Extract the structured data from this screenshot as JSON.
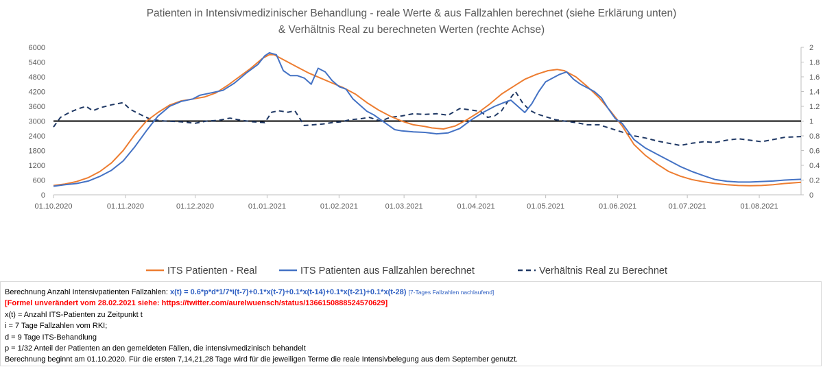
{
  "chart_data": {
    "type": "line",
    "title_line1": "Patienten in Intensivmedizinischer Behandlung - reale Werte & aus Fallzahlen berechnet (siehe Erklärung unten)",
    "title_line2": "& Verhältnis Real zu berechneten Werten (rechte Achse)",
    "y_left": {
      "min": 0,
      "max": 6000,
      "ticks": [
        "6000",
        "5400",
        "4800",
        "4200",
        "3600",
        "3000",
        "2400",
        "1800",
        "1200",
        "600",
        "0"
      ]
    },
    "y_right": {
      "min": 0,
      "max": 2,
      "ticks": [
        "2",
        "1.8",
        "1.6",
        "1.4",
        "1.2",
        "1",
        "0.8",
        "0.6",
        "0.4",
        "0.2",
        "0"
      ]
    },
    "x_range_days": [
      0,
      322
    ],
    "x_ticks": [
      {
        "day": 0,
        "label": "01.10.2020"
      },
      {
        "day": 31,
        "label": "01.11.2020"
      },
      {
        "day": 61,
        "label": "01.12.2020"
      },
      {
        "day": 92,
        "label": "01.01.2021"
      },
      {
        "day": 123,
        "label": "01.02.2021"
      },
      {
        "day": 151,
        "label": "01.03.2021"
      },
      {
        "day": 182,
        "label": "01.04.2021"
      },
      {
        "day": 212,
        "label": "01.05.2021"
      },
      {
        "day": 243,
        "label": "01.06.2021"
      },
      {
        "day": 273,
        "label": "01.07.2021"
      },
      {
        "day": 304,
        "label": "01.08.2021"
      }
    ],
    "reference_line_left": 3000,
    "series": [
      {
        "name": "ITS Patienten - Real",
        "color": "#ed7d31",
        "axis": "left",
        "style": "solid",
        "points": [
          [
            0,
            380
          ],
          [
            5,
            440
          ],
          [
            10,
            540
          ],
          [
            15,
            700
          ],
          [
            20,
            950
          ],
          [
            25,
            1300
          ],
          [
            30,
            1800
          ],
          [
            35,
            2450
          ],
          [
            40,
            3000
          ],
          [
            45,
            3350
          ],
          [
            50,
            3650
          ],
          [
            55,
            3820
          ],
          [
            60,
            3900
          ],
          [
            65,
            3980
          ],
          [
            70,
            4150
          ],
          [
            75,
            4450
          ],
          [
            80,
            4800
          ],
          [
            85,
            5150
          ],
          [
            90,
            5550
          ],
          [
            93,
            5700
          ],
          [
            95,
            5700
          ],
          [
            100,
            5450
          ],
          [
            105,
            5200
          ],
          [
            110,
            4950
          ],
          [
            115,
            4750
          ],
          [
            120,
            4550
          ],
          [
            125,
            4350
          ],
          [
            130,
            4100
          ],
          [
            135,
            3750
          ],
          [
            140,
            3450
          ],
          [
            145,
            3200
          ],
          [
            150,
            3000
          ],
          [
            155,
            2850
          ],
          [
            160,
            2780
          ],
          [
            163,
            2720
          ],
          [
            168,
            2680
          ],
          [
            173,
            2800
          ],
          [
            178,
            3050
          ],
          [
            183,
            3350
          ],
          [
            188,
            3700
          ],
          [
            193,
            4100
          ],
          [
            198,
            4400
          ],
          [
            203,
            4700
          ],
          [
            208,
            4900
          ],
          [
            213,
            5050
          ],
          [
            217,
            5100
          ],
          [
            220,
            5050
          ],
          [
            225,
            4800
          ],
          [
            230,
            4400
          ],
          [
            235,
            3950
          ],
          [
            240,
            3400
          ],
          [
            245,
            2800
          ],
          [
            250,
            2050
          ],
          [
            255,
            1600
          ],
          [
            260,
            1250
          ],
          [
            265,
            950
          ],
          [
            270,
            760
          ],
          [
            275,
            620
          ],
          [
            280,
            530
          ],
          [
            285,
            460
          ],
          [
            290,
            410
          ],
          [
            295,
            380
          ],
          [
            300,
            370
          ],
          [
            305,
            380
          ],
          [
            310,
            410
          ],
          [
            315,
            460
          ],
          [
            322,
            510
          ]
        ]
      },
      {
        "name": "ITS Patienten aus Fallzahlen berechnet",
        "color": "#4472c4",
        "axis": "left",
        "style": "solid",
        "points": [
          [
            0,
            350
          ],
          [
            5,
            410
          ],
          [
            10,
            460
          ],
          [
            15,
            560
          ],
          [
            20,
            750
          ],
          [
            25,
            1000
          ],
          [
            30,
            1380
          ],
          [
            35,
            1950
          ],
          [
            40,
            2600
          ],
          [
            45,
            3200
          ],
          [
            50,
            3600
          ],
          [
            55,
            3800
          ],
          [
            60,
            3900
          ],
          [
            63,
            4050
          ],
          [
            68,
            4150
          ],
          [
            73,
            4250
          ],
          [
            78,
            4550
          ],
          [
            83,
            4950
          ],
          [
            88,
            5300
          ],
          [
            91,
            5650
          ],
          [
            93,
            5780
          ],
          [
            96,
            5700
          ],
          [
            99,
            5050
          ],
          [
            102,
            4850
          ],
          [
            105,
            4850
          ],
          [
            108,
            4750
          ],
          [
            111,
            4500
          ],
          [
            114,
            5150
          ],
          [
            117,
            5000
          ],
          [
            120,
            4650
          ],
          [
            123,
            4400
          ],
          [
            126,
            4300
          ],
          [
            129,
            3900
          ],
          [
            132,
            3650
          ],
          [
            135,
            3400
          ],
          [
            138,
            3250
          ],
          [
            141,
            3050
          ],
          [
            144,
            2850
          ],
          [
            147,
            2650
          ],
          [
            150,
            2600
          ],
          [
            155,
            2560
          ],
          [
            160,
            2540
          ],
          [
            165,
            2480
          ],
          [
            170,
            2520
          ],
          [
            175,
            2700
          ],
          [
            180,
            3050
          ],
          [
            185,
            3350
          ],
          [
            190,
            3600
          ],
          [
            194,
            3750
          ],
          [
            197,
            3850
          ],
          [
            200,
            3600
          ],
          [
            203,
            3350
          ],
          [
            206,
            3700
          ],
          [
            209,
            4200
          ],
          [
            212,
            4600
          ],
          [
            215,
            4750
          ],
          [
            218,
            4900
          ],
          [
            221,
            5000
          ],
          [
            224,
            4700
          ],
          [
            227,
            4500
          ],
          [
            230,
            4350
          ],
          [
            233,
            4200
          ],
          [
            236,
            3950
          ],
          [
            239,
            3500
          ],
          [
            242,
            3100
          ],
          [
            245,
            2900
          ],
          [
            250,
            2250
          ],
          [
            255,
            1900
          ],
          [
            260,
            1650
          ],
          [
            265,
            1400
          ],
          [
            270,
            1150
          ],
          [
            275,
            950
          ],
          [
            280,
            780
          ],
          [
            285,
            620
          ],
          [
            290,
            550
          ],
          [
            295,
            520
          ],
          [
            300,
            520
          ],
          [
            305,
            540
          ],
          [
            310,
            560
          ],
          [
            315,
            600
          ],
          [
            322,
            630
          ]
        ]
      },
      {
        "name": "Verhältnis Real zu Berechnet",
        "color": "#1f3864",
        "axis": "right",
        "style": "dashed",
        "points": [
          [
            0,
            0.92
          ],
          [
            3,
            1.05
          ],
          [
            7,
            1.12
          ],
          [
            11,
            1.17
          ],
          [
            14,
            1.2
          ],
          [
            17,
            1.14
          ],
          [
            20,
            1.18
          ],
          [
            25,
            1.22
          ],
          [
            30,
            1.25
          ],
          [
            33,
            1.16
          ],
          [
            38,
            1.08
          ],
          [
            42,
            1.02
          ],
          [
            48,
            1.0
          ],
          [
            55,
            0.99
          ],
          [
            61,
            0.97
          ],
          [
            66,
            1.0
          ],
          [
            71,
            1.01
          ],
          [
            76,
            1.04
          ],
          [
            81,
            1.01
          ],
          [
            86,
            0.99
          ],
          [
            91,
            0.98
          ],
          [
            94,
            1.12
          ],
          [
            97,
            1.14
          ],
          [
            101,
            1.12
          ],
          [
            104,
            1.14
          ],
          [
            108,
            0.94
          ],
          [
            112,
            0.95
          ],
          [
            116,
            0.96
          ],
          [
            120,
            0.98
          ],
          [
            124,
            0.99
          ],
          [
            128,
            1.02
          ],
          [
            132,
            1.03
          ],
          [
            136,
            1.05
          ],
          [
            141,
            1.0
          ],
          [
            145,
            1.05
          ],
          [
            150,
            1.07
          ],
          [
            155,
            1.1
          ],
          [
            160,
            1.09
          ],
          [
            165,
            1.1
          ],
          [
            170,
            1.08
          ],
          [
            175,
            1.17
          ],
          [
            180,
            1.15
          ],
          [
            184,
            1.13
          ],
          [
            187,
            1.05
          ],
          [
            190,
            1.07
          ],
          [
            193,
            1.14
          ],
          [
            196,
            1.28
          ],
          [
            199,
            1.4
          ],
          [
            202,
            1.25
          ],
          [
            205,
            1.15
          ],
          [
            208,
            1.1
          ],
          [
            212,
            1.06
          ],
          [
            216,
            1.02
          ],
          [
            220,
            1.0
          ],
          [
            225,
            0.98
          ],
          [
            230,
            0.95
          ],
          [
            235,
            0.95
          ],
          [
            240,
            0.9
          ],
          [
            245,
            0.85
          ],
          [
            250,
            0.8
          ],
          [
            255,
            0.77
          ],
          [
            260,
            0.73
          ],
          [
            265,
            0.7
          ],
          [
            270,
            0.67
          ],
          [
            275,
            0.7
          ],
          [
            280,
            0.72
          ],
          [
            285,
            0.71
          ],
          [
            290,
            0.74
          ],
          [
            295,
            0.76
          ],
          [
            300,
            0.74
          ],
          [
            305,
            0.72
          ],
          [
            310,
            0.75
          ],
          [
            315,
            0.78
          ],
          [
            322,
            0.79
          ]
        ]
      }
    ],
    "legend": [
      "ITS Patienten - Real",
      "ITS Patienten aus Fallzahlen berechnet",
      "Verhältnis Real zu Berechnet"
    ]
  },
  "notes": {
    "line1_prefix": "Berechnung Anzahl Intensivpatienten Fallzahlen: ",
    "formula": "x(t) = 0.6*p*d*1/7*i(t-7)+0.1*x(t-7)+0.1*x(t-14)+0.1*x(t-21)+0.1*x(t-28)",
    "formula_note": "[7-Tages Fallzahlen nachlaufend]",
    "line2": "[Formel unverändert vom 28.02.2021 siehe: https://twitter.com/aurelwuensch/status/1366150888524570629]",
    "line3": "x(t) = Anzahl ITS-Patienten zu Zeitpunkt t",
    "line4": "i = 7 Tage Fallzahlen vom RKI;",
    "line5": "d = 9 Tage ITS-Behandlung",
    "line6": "p = 1/32 Anteil der Patienten an den gemeldeten Fällen, die intensivmedizinisch behandelt",
    "line7": "Berechnung beginnt am 01.10.2020. Für die ersten 7,14,21,28 Tage wird für die jeweiligen Terme die reale Intensivbelegung aus dem September genutzt."
  }
}
